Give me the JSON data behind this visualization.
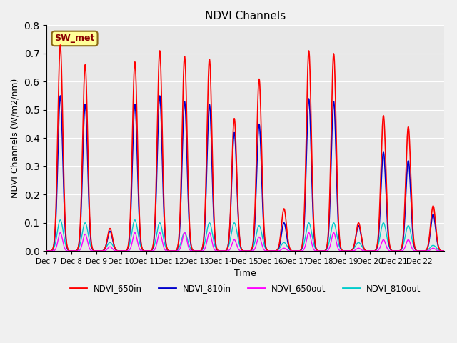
{
  "title": "NDVI Channels",
  "xlabel": "Time",
  "ylabel": "NDVI Channels (W/m2/nm)",
  "ylim": [
    0.0,
    0.8
  ],
  "background_color": "#e8e8e8",
  "label_box_text": "SW_met",
  "label_box_color": "#ffff99",
  "label_box_edge": "#8B6914",
  "colors": {
    "NDVI_650in": "#ff0000",
    "NDVI_810in": "#0000cc",
    "NDVI_650out": "#ff00ff",
    "NDVI_810out": "#00cccc"
  },
  "xtick_labels": [
    "Dec 7",
    "Dec 8",
    "Dec 9",
    "Dec 10",
    "Dec 11",
    "Dec 12",
    "Dec 13",
    "Dec 14",
    "Dec 15",
    "Dec 16",
    "Dec 17",
    "Dec 18",
    "Dec 19",
    "Dec 20",
    "Dec 21",
    "Dec 22"
  ],
  "peak_650in": [
    0.73,
    0.66,
    0.08,
    0.67,
    0.71,
    0.69,
    0.68,
    0.47,
    0.61,
    0.15,
    0.71,
    0.7,
    0.1,
    0.48,
    0.44,
    0.16
  ],
  "peak_810in": [
    0.55,
    0.52,
    0.07,
    0.52,
    0.55,
    0.53,
    0.52,
    0.42,
    0.45,
    0.1,
    0.54,
    0.53,
    0.09,
    0.35,
    0.32,
    0.13
  ],
  "peak_650out": [
    0.065,
    0.06,
    0.015,
    0.065,
    0.065,
    0.065,
    0.065,
    0.04,
    0.05,
    0.01,
    0.065,
    0.065,
    0.01,
    0.04,
    0.04,
    0.01
  ],
  "peak_810out": [
    0.11,
    0.1,
    0.03,
    0.11,
    0.1,
    0.065,
    0.1,
    0.1,
    0.09,
    0.03,
    0.1,
    0.1,
    0.03,
    0.1,
    0.09,
    0.02
  ],
  "linewidth_in": 1.2,
  "linewidth_out": 1.0
}
